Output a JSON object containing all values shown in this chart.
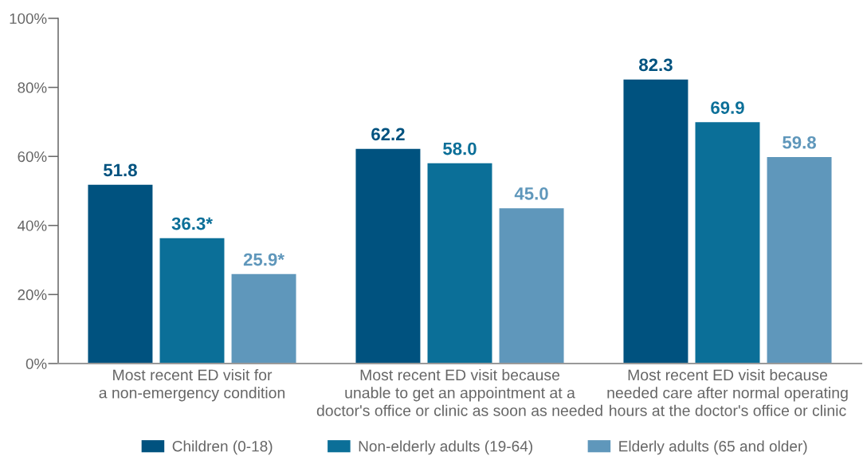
{
  "chart_data": {
    "type": "bar",
    "categories": [
      "Most recent ED visit for\na non-emergency condition",
      "Most recent ED visit because\nunable to get an appointment at a\ndoctor's office or clinic as soon as needed",
      "Most recent ED visit because\nneeded care after normal operating\nhours at the doctor's office or clinic"
    ],
    "series": [
      {
        "name": "Children (0-18)",
        "color": "#00527f",
        "values": [
          51.8,
          62.2,
          82.3
        ],
        "value_labels": [
          "51.8",
          "62.2",
          "82.3"
        ]
      },
      {
        "name": "Non-elderly adults (19-64)",
        "color": "#0b6f98",
        "values": [
          36.3,
          58.0,
          69.9
        ],
        "value_labels": [
          "36.3*",
          "58.0",
          "69.9"
        ]
      },
      {
        "name": "Elderly adults (65 and older)",
        "color": "#5f97bb",
        "values": [
          25.9,
          45.0,
          59.8
        ],
        "value_labels": [
          "25.9*",
          "45.0",
          "59.8"
        ]
      }
    ],
    "ylim": [
      0,
      100
    ],
    "yticks": [
      {
        "value": 0,
        "label": "0%"
      },
      {
        "value": 20,
        "label": "20%"
      },
      {
        "value": 40,
        "label": "40%"
      },
      {
        "value": 60,
        "label": "60%"
      },
      {
        "value": 80,
        "label": "80%"
      },
      {
        "value": 100,
        "label": "100%"
      }
    ],
    "grid": false,
    "legend": "bottom"
  }
}
